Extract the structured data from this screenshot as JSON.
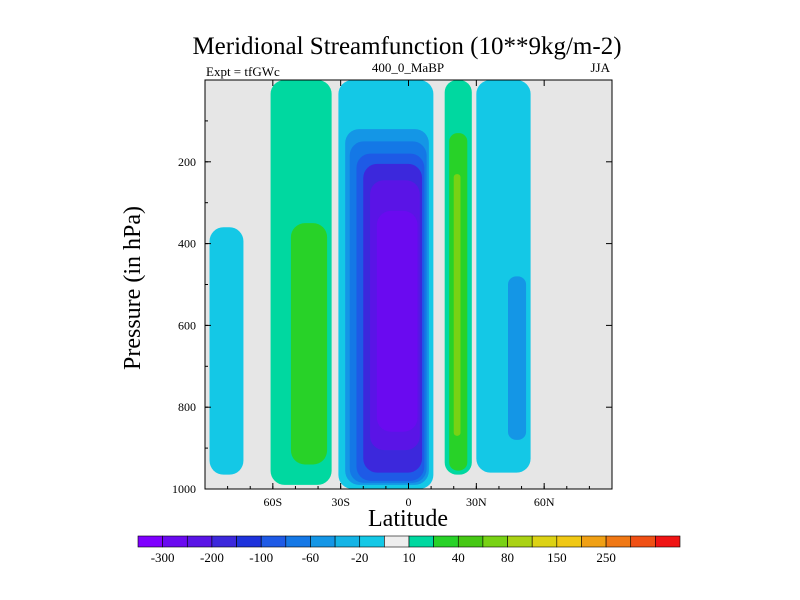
{
  "chart_data": {
    "type": "contour",
    "title": "Meridional Streamfunction (10**9kg/m-2)",
    "left_string": "Expt = tfGWc",
    "center_string": "400_0_MaBP",
    "right_string": "JJA",
    "xlabel": "Latitude",
    "ylabel": "Pressure (in hPa)",
    "xlim": [
      -90,
      90
    ],
    "ylim": [
      1000,
      0
    ],
    "x_ticks": [
      {
        "value": -60,
        "label": "60S"
      },
      {
        "value": -30,
        "label": "30S"
      },
      {
        "value": 0,
        "label": "0"
      },
      {
        "value": 30,
        "label": "30N"
      },
      {
        "value": 60,
        "label": "60N"
      }
    ],
    "y_ticks": [
      {
        "value": 200,
        "label": "200"
      },
      {
        "value": 400,
        "label": "400"
      },
      {
        "value": 600,
        "label": "600"
      },
      {
        "value": 800,
        "label": "800"
      },
      {
        "value": 1000,
        "label": "1000"
      }
    ],
    "missing_color": "#e6e6e6",
    "colorbar": {
      "colors": [
        "#7f00ff",
        "#6a0af0",
        "#5a14e6",
        "#3c28dc",
        "#1e32dc",
        "#1e5ae6",
        "#1478e6",
        "#1496e6",
        "#14b4e6",
        "#14c8e6",
        "#eeeeee",
        "#00d8a0",
        "#28d228",
        "#46c814",
        "#78d214",
        "#aad214",
        "#dcd214",
        "#f0c814",
        "#f0a014",
        "#f07814",
        "#f05014",
        "#f01414"
      ],
      "labels": [
        {
          "after_index": 0,
          "text": "-300"
        },
        {
          "after_index": 2,
          "text": "-200"
        },
        {
          "after_index": 4,
          "text": "-100"
        },
        {
          "after_index": 6,
          "text": "-60"
        },
        {
          "after_index": 8,
          "text": "-20"
        },
        {
          "after_index": 10,
          "text": "10"
        },
        {
          "after_index": 12,
          "text": "40"
        },
        {
          "after_index": 14,
          "text": "80"
        },
        {
          "after_index": 16,
          "text": "150"
        },
        {
          "after_index": 18,
          "text": "250"
        }
      ]
    },
    "regions": [
      {
        "name": "nh-polar-cyan-cell",
        "color": "#14c8e6",
        "lat_range": [
          -88,
          -73
        ],
        "p_range": [
          360,
          965
        ],
        "value": -10
      },
      {
        "name": "sh-midlat-teal-cell",
        "color": "#00d8a0",
        "lat_range": [
          -61,
          -34
        ],
        "p_range": [
          0,
          990
        ],
        "value": 15
      },
      {
        "name": "sh-midlat-green-core",
        "color": "#28d228",
        "lat_range": [
          -52,
          -36
        ],
        "p_range": [
          350,
          940
        ],
        "value": 30
      },
      {
        "name": "tropical-cell-outer",
        "color": "#14c8e6",
        "lat_range": [
          -31,
          11
        ],
        "p_range": [
          0,
          1000
        ],
        "value": -10
      },
      {
        "name": "tropical-cell-level2",
        "color": "#1496e6",
        "lat_range": [
          -28,
          9
        ],
        "p_range": [
          120,
          990
        ],
        "value": -40
      },
      {
        "name": "tropical-cell-level3",
        "color": "#1478e6",
        "lat_range": [
          -26,
          8
        ],
        "p_range": [
          150,
          985
        ],
        "value": -80
      },
      {
        "name": "tropical-cell-level4",
        "color": "#1e5ae6",
        "lat_range": [
          -23,
          7
        ],
        "p_range": [
          180,
          980
        ],
        "value": -100
      },
      {
        "name": "tropical-cell-level5",
        "color": "#3c28dc",
        "lat_range": [
          -20,
          6
        ],
        "p_range": [
          205,
          960
        ],
        "value": -150
      },
      {
        "name": "tropical-cell-level6",
        "color": "#5a14e6",
        "lat_range": [
          -17,
          5
        ],
        "p_range": [
          245,
          905
        ],
        "value": -200
      },
      {
        "name": "tropical-cell-core",
        "color": "#6a0af0",
        "lat_range": [
          -14,
          4
        ],
        "p_range": [
          320,
          860
        ],
        "value": -250
      },
      {
        "name": "nh-subtropic-teal-cell",
        "color": "#00d8a0",
        "lat_range": [
          16,
          28
        ],
        "p_range": [
          0,
          965
        ],
        "value": 15
      },
      {
        "name": "nh-subtropic-green-core",
        "color": "#28d228",
        "lat_range": [
          18,
          26
        ],
        "p_range": [
          130,
          955
        ],
        "value": 30
      },
      {
        "name": "nh-subtropic-yellow-core",
        "color": "#78d214",
        "lat_range": [
          20,
          23
        ],
        "p_range": [
          230,
          870
        ],
        "value": 60
      },
      {
        "name": "nh-midlat-cyan-cell",
        "color": "#14c8e6",
        "lat_range": [
          30,
          54
        ],
        "p_range": [
          0,
          960
        ],
        "value": -10
      },
      {
        "name": "nh-midlat-blue-core",
        "color": "#1496e6",
        "lat_range": [
          44,
          52
        ],
        "p_range": [
          480,
          880
        ],
        "value": -30
      }
    ]
  }
}
